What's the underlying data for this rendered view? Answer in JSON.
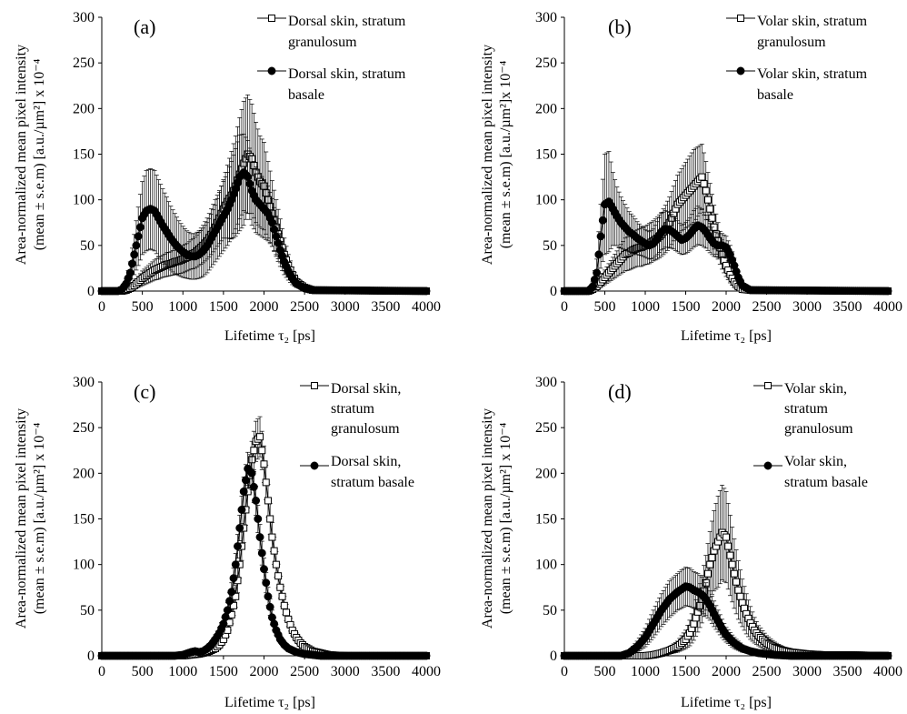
{
  "chart_data": [
    {
      "type": "line",
      "panel_label": "(a)",
      "ylabel_line1": "Area-normalized mean pixel intensity",
      "ylabel_line2": "(mean ± s.e.m) [a.u./µm²] x 10⁻⁴",
      "xlabel": "Lifetime τ₂ [ps]",
      "xlim": [
        0,
        4000
      ],
      "ylim": [
        0,
        300
      ],
      "xticks": [
        0,
        500,
        1000,
        1500,
        2000,
        2500,
        3000,
        3500,
        4000
      ],
      "yticks": [
        0,
        50,
        100,
        150,
        200,
        250,
        300
      ],
      "grid": false,
      "legend_position": "top-right",
      "series": [
        {
          "name_line1": "Dorsal skin, stratum",
          "name_line2": "granulosum",
          "marker": "open-square",
          "x": [
            0,
            250,
            300,
            350,
            400,
            450,
            500,
            550,
            600,
            650,
            700,
            750,
            800,
            850,
            900,
            950,
            1000,
            1050,
            1100,
            1150,
            1200,
            1250,
            1300,
            1350,
            1400,
            1450,
            1500,
            1550,
            1600,
            1650,
            1700,
            1750,
            1800,
            1850,
            1900,
            1950,
            2000,
            2050,
            2100,
            2150,
            2200,
            2250,
            2300,
            2350,
            2400,
            2500,
            2600,
            4000
          ],
          "y": [
            0,
            0,
            1,
            3,
            6,
            10,
            14,
            17,
            20,
            23,
            25,
            27,
            29,
            30,
            32,
            33,
            35,
            37,
            40,
            42,
            46,
            50,
            55,
            62,
            70,
            80,
            90,
            98,
            105,
            115,
            128,
            140,
            150,
            145,
            130,
            120,
            115,
            100,
            85,
            70,
            55,
            40,
            28,
            18,
            10,
            4,
            1,
            0
          ],
          "err": [
            0,
            0,
            1,
            2,
            4,
            6,
            8,
            9,
            10,
            11,
            12,
            12,
            13,
            13,
            14,
            14,
            15,
            15,
            16,
            17,
            18,
            19,
            20,
            22,
            24,
            28,
            32,
            40,
            48,
            55,
            62,
            68,
            65,
            60,
            55,
            50,
            48,
            42,
            36,
            30,
            24,
            18,
            12,
            8,
            5,
            3,
            1,
            0
          ]
        },
        {
          "name_line1": "Dorsal skin, stratum",
          "name_line2": "basale",
          "marker": "filled-circle",
          "x": [
            0,
            200,
            250,
            300,
            350,
            400,
            450,
            500,
            550,
            600,
            650,
            700,
            750,
            800,
            850,
            900,
            950,
            1000,
            1050,
            1100,
            1150,
            1200,
            1250,
            1300,
            1350,
            1400,
            1450,
            1500,
            1550,
            1600,
            1650,
            1700,
            1750,
            1800,
            1850,
            1900,
            1950,
            2000,
            2050,
            2100,
            2150,
            2200,
            2250,
            2300,
            2350,
            2400,
            2500,
            2600,
            4000
          ],
          "y": [
            0,
            0,
            2,
            8,
            20,
            40,
            60,
            80,
            88,
            90,
            88,
            80,
            72,
            65,
            58,
            52,
            47,
            43,
            40,
            38,
            38,
            40,
            44,
            50,
            58,
            66,
            74,
            82,
            90,
            100,
            112,
            125,
            130,
            125,
            110,
            100,
            95,
            90,
            85,
            75,
            60,
            45,
            32,
            22,
            14,
            8,
            3,
            1,
            0
          ],
          "err": [
            0,
            0,
            2,
            5,
            12,
            22,
            32,
            40,
            44,
            44,
            44,
            42,
            40,
            38,
            35,
            33,
            30,
            28,
            26,
            25,
            25,
            26,
            28,
            30,
            32,
            34,
            36,
            38,
            40,
            42,
            44,
            46,
            42,
            40,
            38,
            36,
            34,
            32,
            30,
            26,
            22,
            18,
            14,
            10,
            7,
            4,
            2,
            1,
            0
          ]
        }
      ]
    },
    {
      "type": "line",
      "panel_label": "(b)",
      "ylabel_line1": "Area-normalized mean pixel intensity",
      "ylabel_line2": "(mean ± s.e.m) [a.u./µm²]x 10⁻⁴",
      "xlabel": "Lifetime τ₂ [ps]",
      "xlim": [
        0,
        4000
      ],
      "ylim": [
        0,
        300
      ],
      "xticks": [
        0,
        500,
        1000,
        1500,
        2000,
        2500,
        3000,
        3500,
        4000
      ],
      "yticks": [
        0,
        50,
        100,
        150,
        200,
        250,
        300
      ],
      "grid": false,
      "legend_position": "top-right",
      "series": [
        {
          "name_line1": "Volar skin, stratum",
          "name_line2": "granulosum",
          "marker": "open-square",
          "x": [
            0,
            300,
            350,
            400,
            450,
            500,
            550,
            600,
            650,
            700,
            750,
            800,
            850,
            900,
            950,
            1000,
            1050,
            1100,
            1150,
            1200,
            1250,
            1300,
            1350,
            1400,
            1450,
            1500,
            1550,
            1600,
            1650,
            1700,
            1750,
            1800,
            1850,
            1900,
            1950,
            2000,
            2050,
            2100,
            2150,
            2200,
            2300,
            4000
          ],
          "y": [
            0,
            0,
            2,
            5,
            10,
            15,
            20,
            25,
            30,
            35,
            40,
            42,
            45,
            47,
            48,
            50,
            52,
            55,
            58,
            62,
            68,
            75,
            85,
            95,
            100,
            105,
            110,
            115,
            120,
            125,
            110,
            90,
            70,
            55,
            40,
            28,
            18,
            10,
            5,
            2,
            1,
            0
          ],
          "err": [
            0,
            0,
            2,
            4,
            6,
            8,
            10,
            12,
            14,
            16,
            18,
            19,
            20,
            20,
            21,
            21,
            22,
            22,
            23,
            24,
            26,
            28,
            30,
            32,
            34,
            36,
            38,
            40,
            38,
            36,
            32,
            28,
            24,
            20,
            16,
            12,
            9,
            6,
            4,
            2,
            1,
            0
          ]
        },
        {
          "name_line1": "Volar skin, stratum",
          "name_line2": "basale",
          "marker": "filled-circle",
          "x": [
            0,
            300,
            350,
            400,
            450,
            500,
            550,
            600,
            650,
            700,
            750,
            800,
            850,
            900,
            950,
            1000,
            1050,
            1100,
            1150,
            1200,
            1250,
            1300,
            1350,
            1400,
            1450,
            1500,
            1550,
            1600,
            1650,
            1700,
            1750,
            1800,
            1850,
            1900,
            1950,
            2000,
            2050,
            2100,
            2150,
            2200,
            2300,
            4000
          ],
          "y": [
            0,
            0,
            5,
            20,
            60,
            95,
            98,
            90,
            82,
            75,
            70,
            65,
            62,
            58,
            55,
            52,
            50,
            52,
            58,
            65,
            68,
            67,
            64,
            60,
            56,
            58,
            62,
            68,
            72,
            70,
            65,
            58,
            52,
            50,
            50,
            48,
            40,
            28,
            15,
            6,
            1,
            0
          ],
          "err": [
            0,
            0,
            5,
            15,
            35,
            55,
            55,
            40,
            32,
            28,
            25,
            22,
            20,
            18,
            16,
            15,
            15,
            16,
            18,
            20,
            20,
            19,
            18,
            17,
            16,
            17,
            18,
            20,
            21,
            20,
            18,
            16,
            14,
            13,
            13,
            12,
            10,
            8,
            6,
            3,
            1,
            0
          ]
        }
      ]
    },
    {
      "type": "line",
      "panel_label": "(c)",
      "ylabel_line1": "Area-normalized mean pixel intensity",
      "ylabel_line2": "(mean ± s.e.m) [a.u./µm²] x 10⁻⁴",
      "xlabel": "Lifetime τ₂ [ps]",
      "xlim": [
        0,
        4000
      ],
      "ylim": [
        0,
        300
      ],
      "xticks": [
        0,
        500,
        1000,
        1500,
        2000,
        2500,
        3000,
        3500,
        4000
      ],
      "yticks": [
        0,
        50,
        100,
        150,
        200,
        250,
        300
      ],
      "grid": false,
      "legend_position": "top-right",
      "series": [
        {
          "name_line1": "Dorsal skin,",
          "name_line2": "stratum",
          "name_line3": "granulosum",
          "marker": "open-square",
          "x": [
            0,
            1000,
            1100,
            1200,
            1300,
            1400,
            1450,
            1500,
            1550,
            1600,
            1650,
            1700,
            1750,
            1800,
            1850,
            1900,
            1950,
            2000,
            2050,
            2100,
            2150,
            2200,
            2250,
            2300,
            2350,
            2400,
            2450,
            2500,
            2600,
            2700,
            2800,
            3000,
            4000
          ],
          "y": [
            0,
            0,
            1,
            2,
            4,
            8,
            12,
            18,
            28,
            45,
            65,
            100,
            140,
            180,
            215,
            235,
            240,
            210,
            170,
            130,
            100,
            75,
            55,
            40,
            28,
            20,
            14,
            10,
            5,
            3,
            1,
            0,
            0
          ],
          "err": [
            0,
            0,
            1,
            1,
            2,
            3,
            4,
            5,
            7,
            10,
            12,
            15,
            16,
            18,
            20,
            22,
            22,
            20,
            18,
            16,
            14,
            12,
            10,
            8,
            6,
            5,
            4,
            3,
            2,
            1,
            1,
            0,
            0
          ]
        },
        {
          "name_line1": "Dorsal skin,",
          "name_line2": "stratum basale",
          "marker": "filled-circle",
          "x": [
            0,
            900,
            1000,
            1100,
            1150,
            1200,
            1250,
            1300,
            1350,
            1400,
            1450,
            1500,
            1550,
            1600,
            1650,
            1700,
            1750,
            1800,
            1850,
            1900,
            1950,
            2000,
            2050,
            2100,
            2150,
            2200,
            2250,
            2300,
            2400,
            2500,
            2700,
            4000
          ],
          "y": [
            0,
            0,
            1,
            4,
            5,
            4,
            5,
            8,
            12,
            18,
            25,
            35,
            50,
            70,
            100,
            140,
            180,
            205,
            200,
            170,
            130,
            95,
            65,
            42,
            28,
            18,
            12,
            8,
            4,
            2,
            0,
            0
          ],
          "err": [
            0,
            0,
            1,
            2,
            2,
            2,
            2,
            3,
            4,
            5,
            6,
            7,
            8,
            10,
            12,
            14,
            16,
            18,
            18,
            16,
            14,
            12,
            10,
            8,
            6,
            4,
            3,
            2,
            1,
            1,
            0,
            0
          ]
        }
      ]
    },
    {
      "type": "line",
      "panel_label": "(d)",
      "ylabel_line1": "Area-normalized mean pixel intensity",
      "ylabel_line2": "(mean ± s.e.m) [a.u./µm²] x 10⁻⁴",
      "xlabel": "Lifetime τ₂ [ps]",
      "xlim": [
        0,
        4000
      ],
      "ylim": [
        0,
        300
      ],
      "xticks": [
        0,
        500,
        1000,
        1500,
        2000,
        2500,
        3000,
        3500,
        4000
      ],
      "yticks": [
        0,
        50,
        100,
        150,
        200,
        250,
        300
      ],
      "grid": false,
      "legend_position": "top-right",
      "series": [
        {
          "name_line1": "Volar skin,",
          "name_line2": "stratum",
          "name_line3": "granulosum",
          "marker": "open-square",
          "x": [
            0,
            1000,
            1100,
            1200,
            1300,
            1400,
            1500,
            1550,
            1600,
            1650,
            1700,
            1750,
            1800,
            1850,
            1900,
            1950,
            2000,
            2050,
            2100,
            2150,
            2200,
            2250,
            2300,
            2350,
            2400,
            2500,
            2600,
            2700,
            2800,
            2900,
            3000,
            3200,
            3500,
            4000
          ],
          "y": [
            0,
            0,
            1,
            3,
            6,
            10,
            18,
            25,
            35,
            48,
            62,
            80,
            100,
            115,
            125,
            135,
            130,
            110,
            90,
            72,
            58,
            46,
            36,
            28,
            22,
            14,
            9,
            6,
            4,
            3,
            2,
            1,
            1,
            0
          ],
          "err": [
            0,
            0,
            1,
            2,
            4,
            6,
            10,
            14,
            18,
            22,
            26,
            30,
            36,
            44,
            50,
            52,
            50,
            44,
            38,
            32,
            26,
            22,
            18,
            14,
            11,
            8,
            6,
            4,
            3,
            2,
            1,
            1,
            1,
            0
          ]
        },
        {
          "name_line1": "Volar skin,",
          "name_line2": "stratum basale",
          "marker": "filled-circle",
          "x": [
            0,
            700,
            800,
            900,
            1000,
            1100,
            1200,
            1300,
            1400,
            1450,
            1500,
            1550,
            1600,
            1650,
            1700,
            1750,
            1800,
            1850,
            1900,
            1950,
            2000,
            2100,
            2200,
            2300,
            2400,
            2500,
            2600,
            2800,
            3000,
            4000
          ],
          "y": [
            0,
            0,
            3,
            10,
            20,
            35,
            50,
            62,
            70,
            73,
            76,
            75,
            72,
            70,
            67,
            62,
            55,
            46,
            38,
            30,
            23,
            14,
            8,
            5,
            3,
            2,
            1,
            0,
            0,
            0
          ],
          "err": [
            0,
            0,
            2,
            6,
            10,
            15,
            18,
            20,
            20,
            21,
            21,
            21,
            20,
            20,
            19,
            18,
            16,
            14,
            12,
            10,
            8,
            6,
            4,
            3,
            2,
            1,
            1,
            0,
            0,
            0
          ]
        }
      ]
    }
  ]
}
